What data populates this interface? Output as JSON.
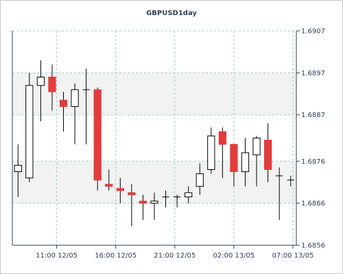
{
  "chart_data": {
    "type": "candlestick",
    "title": "GBPUSD1day",
    "xlabel": "",
    "ylabel": "",
    "ylim": [
      1.6856,
      1.6907
    ],
    "yticks": [
      {
        "value": 1.6907,
        "label": "1.6907"
      },
      {
        "value": 1.6897,
        "label": "1.6897"
      },
      {
        "value": 1.6887,
        "label": "1.6887"
      },
      {
        "value": 1.6876,
        "label": "1.6876"
      },
      {
        "value": 1.6866,
        "label": "1.6866"
      },
      {
        "value": 1.6856,
        "label": "1.6856"
      }
    ],
    "xticks": [
      {
        "index": 3.4,
        "label": "11:00 12/05"
      },
      {
        "index": 8.6,
        "label": "16:00 12/05"
      },
      {
        "index": 13.8,
        "label": "21:00 12/05"
      },
      {
        "index": 19.0,
        "label": "02:00 13/05"
      },
      {
        "index": 24.2,
        "label": "07:00 13/05"
      }
    ],
    "grid": true,
    "colors": {
      "up": "#ffffff",
      "down": "#e23c3c",
      "outline": "#000000",
      "grid": "#8fd0d0",
      "axis": "#2b3e5a",
      "band": "#f2f2f2"
    },
    "candles": [
      {
        "open": 1.68735,
        "high": 1.688,
        "low": 1.68675,
        "close": 1.6875
      },
      {
        "open": 1.6872,
        "high": 1.6897,
        "low": 1.6871,
        "close": 1.6894
      },
      {
        "open": 1.6894,
        "high": 1.69,
        "low": 1.68855,
        "close": 1.6896
      },
      {
        "open": 1.6896,
        "high": 1.6899,
        "low": 1.6888,
        "close": 1.68925
      },
      {
        "open": 1.68905,
        "high": 1.68925,
        "low": 1.6883,
        "close": 1.6889
      },
      {
        "open": 1.6889,
        "high": 1.68945,
        "low": 1.688,
        "close": 1.6893
      },
      {
        "open": 1.6893,
        "high": 1.6898,
        "low": 1.688,
        "close": 1.6893
      },
      {
        "open": 1.6893,
        "high": 1.68935,
        "low": 1.6869,
        "close": 1.68715
      },
      {
        "open": 1.68705,
        "high": 1.6874,
        "low": 1.6869,
        "close": 1.687
      },
      {
        "open": 1.68695,
        "high": 1.6872,
        "low": 1.6866,
        "close": 1.6869
      },
      {
        "open": 1.68685,
        "high": 1.68705,
        "low": 1.68605,
        "close": 1.6868
      },
      {
        "open": 1.68665,
        "high": 1.6868,
        "low": 1.6862,
        "close": 1.6866
      },
      {
        "open": 1.6866,
        "high": 1.68685,
        "low": 1.6862,
        "close": 1.68665
      },
      {
        "open": 1.68675,
        "high": 1.6869,
        "low": 1.6865,
        "close": 1.68675
      },
      {
        "open": 1.68675,
        "high": 1.6868,
        "low": 1.6865,
        "close": 1.68675
      },
      {
        "open": 1.68675,
        "high": 1.687,
        "low": 1.6866,
        "close": 1.68685
      },
      {
        "open": 1.687,
        "high": 1.68755,
        "low": 1.6868,
        "close": 1.6873
      },
      {
        "open": 1.6874,
        "high": 1.6884,
        "low": 1.6873,
        "close": 1.6882
      },
      {
        "open": 1.6883,
        "high": 1.6884,
        "low": 1.6872,
        "close": 1.688
      },
      {
        "open": 1.688,
        "high": 1.688,
        "low": 1.687,
        "close": 1.68735
      },
      {
        "open": 1.68735,
        "high": 1.68815,
        "low": 1.687,
        "close": 1.6878
      },
      {
        "open": 1.68775,
        "high": 1.6882,
        "low": 1.687,
        "close": 1.68815
      },
      {
        "open": 1.6881,
        "high": 1.6885,
        "low": 1.6871,
        "close": 1.6874
      },
      {
        "open": 1.68725,
        "high": 1.68745,
        "low": 1.6862,
        "close": 1.68725
      },
      {
        "open": 1.68715,
        "high": 1.68725,
        "low": 1.687,
        "close": 1.68715
      }
    ]
  }
}
